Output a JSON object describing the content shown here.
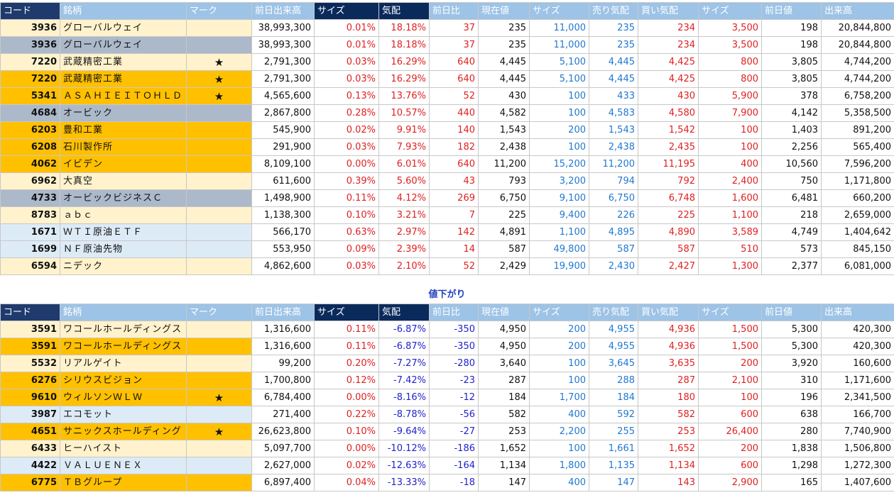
{
  "headers": [
    "コード",
    "銘柄",
    "マーク",
    "前日出来高",
    "サイズ",
    "気配",
    "前日比",
    "現在値",
    "サイズ",
    "売り気配",
    "買い気配",
    "サイズ",
    "前日値",
    "出来高"
  ],
  "section_label": "値下がり",
  "colors": {
    "cream": "#fff2cc",
    "orange": "#ffc000",
    "gray": "#acb9ca",
    "lightblue": "#ddebf7",
    "red": "#e02020",
    "blue": "#1f78d1"
  },
  "top_rows": [
    {
      "color": "cream",
      "code": "3936",
      "name": "グローバルウェイ",
      "mark": "",
      "prev_vol": "38,993,300",
      "size1": "0.01%",
      "quote": "18.18%",
      "change": "37",
      "price": "235",
      "size2": "11,000",
      "ask": "235",
      "bid": "234",
      "size3": "3,500",
      "prev": "198",
      "vol": "20,844,800"
    },
    {
      "color": "gray",
      "code": "3936",
      "name": "グローバルウェイ",
      "mark": "",
      "prev_vol": "38,993,300",
      "size1": "0.01%",
      "quote": "18.18%",
      "change": "37",
      "price": "235",
      "size2": "11,000",
      "ask": "235",
      "bid": "234",
      "size3": "3,500",
      "prev": "198",
      "vol": "20,844,800"
    },
    {
      "color": "cream",
      "code": "7220",
      "name": "武蔵精密工業",
      "mark": "★",
      "prev_vol": "2,791,300",
      "size1": "0.03%",
      "quote": "16.29%",
      "change": "640",
      "price": "4,445",
      "size2": "5,100",
      "ask": "4,445",
      "bid": "4,425",
      "size3": "800",
      "prev": "3,805",
      "vol": "4,744,200"
    },
    {
      "color": "orange",
      "code": "7220",
      "name": "武蔵精密工業",
      "mark": "★",
      "prev_vol": "2,791,300",
      "size1": "0.03%",
      "quote": "16.29%",
      "change": "640",
      "price": "4,445",
      "size2": "5,100",
      "ask": "4,445",
      "bid": "4,425",
      "size3": "800",
      "prev": "3,805",
      "vol": "4,744,200"
    },
    {
      "color": "orange",
      "code": "5341",
      "name": "ＡＳＡＨＩＥＩＴＯＨＬＤ",
      "mark": "★",
      "prev_vol": "4,565,600",
      "size1": "0.13%",
      "quote": "13.76%",
      "change": "52",
      "price": "430",
      "size2": "100",
      "ask": "433",
      "bid": "430",
      "size3": "5,900",
      "prev": "378",
      "vol": "6,758,200"
    },
    {
      "color": "gray",
      "code": "4684",
      "name": "オービック",
      "mark": "",
      "prev_vol": "2,867,800",
      "size1": "0.28%",
      "quote": "10.57%",
      "change": "440",
      "price": "4,582",
      "size2": "100",
      "ask": "4,583",
      "bid": "4,580",
      "size3": "7,900",
      "prev": "4,142",
      "vol": "5,358,500"
    },
    {
      "color": "orange",
      "code": "6203",
      "name": "豊和工業",
      "mark": "",
      "prev_vol": "545,900",
      "size1": "0.02%",
      "quote": "9.91%",
      "change": "140",
      "price": "1,543",
      "size2": "200",
      "ask": "1,543",
      "bid": "1,542",
      "size3": "100",
      "prev": "1,403",
      "vol": "891,200"
    },
    {
      "color": "orange",
      "code": "6208",
      "name": "石川製作所",
      "mark": "",
      "prev_vol": "291,900",
      "size1": "0.03%",
      "quote": "7.93%",
      "change": "182",
      "price": "2,438",
      "size2": "100",
      "ask": "2,438",
      "bid": "2,435",
      "size3": "100",
      "prev": "2,256",
      "vol": "565,400"
    },
    {
      "color": "orange",
      "code": "4062",
      "name": "イビデン",
      "mark": "",
      "prev_vol": "8,109,100",
      "size1": "0.00%",
      "quote": "6.01%",
      "change": "640",
      "price": "11,200",
      "size2": "15,200",
      "ask": "11,200",
      "bid": "11,195",
      "size3": "400",
      "prev": "10,560",
      "vol": "7,596,200"
    },
    {
      "color": "cream",
      "code": "6962",
      "name": "大真空",
      "mark": "",
      "prev_vol": "611,600",
      "size1": "0.39%",
      "quote": "5.60%",
      "change": "43",
      "price": "793",
      "size2": "3,200",
      "ask": "794",
      "bid": "792",
      "size3": "2,400",
      "prev": "750",
      "vol": "1,171,800"
    },
    {
      "color": "gray",
      "code": "4733",
      "name": "オービックビジネスＣ",
      "mark": "",
      "prev_vol": "1,498,900",
      "size1": "0.11%",
      "quote": "4.12%",
      "change": "269",
      "price": "6,750",
      "size2": "9,100",
      "ask": "6,750",
      "bid": "6,748",
      "size3": "1,600",
      "prev": "6,481",
      "vol": "660,200"
    },
    {
      "color": "cream",
      "code": "8783",
      "name": "ａｂｃ",
      "mark": "",
      "prev_vol": "1,138,300",
      "size1": "0.10%",
      "quote": "3.21%",
      "change": "7",
      "price": "225",
      "size2": "9,400",
      "ask": "226",
      "bid": "225",
      "size3": "1,100",
      "prev": "218",
      "vol": "2,659,000"
    },
    {
      "color": "lightblue",
      "code": "1671",
      "name": "ＷＴＩ原油ＥＴＦ",
      "mark": "",
      "prev_vol": "566,170",
      "size1": "0.63%",
      "quote": "2.97%",
      "change": "142",
      "price": "4,891",
      "size2": "1,100",
      "ask": "4,895",
      "bid": "4,890",
      "size3": "3,589",
      "prev": "4,749",
      "vol": "1,404,642"
    },
    {
      "color": "lightblue",
      "code": "1699",
      "name": "ＮＦ原油先物",
      "mark": "",
      "prev_vol": "553,950",
      "size1": "0.09%",
      "quote": "2.39%",
      "change": "14",
      "price": "587",
      "size2": "49,800",
      "ask": "587",
      "bid": "587",
      "size3": "510",
      "prev": "573",
      "vol": "845,150"
    },
    {
      "color": "cream",
      "code": "6594",
      "name": "ニデック",
      "mark": "",
      "prev_vol": "4,862,600",
      "size1": "0.03%",
      "quote": "2.10%",
      "change": "52",
      "price": "2,429",
      "size2": "19,900",
      "ask": "2,430",
      "bid": "2,427",
      "size3": "1,300",
      "prev": "2,377",
      "vol": "6,081,000"
    }
  ],
  "bottom_rows": [
    {
      "color": "cream",
      "code": "3591",
      "name": "ワコールホールディングス",
      "mark": "",
      "prev_vol": "1,316,600",
      "size1": "0.11%",
      "quote": "-6.87%",
      "change": "-350",
      "price": "4,950",
      "size2": "200",
      "ask": "4,955",
      "bid": "4,936",
      "size3": "1,500",
      "prev": "5,300",
      "vol": "420,300"
    },
    {
      "color": "orange",
      "code": "3591",
      "name": "ワコールホールディングス",
      "mark": "",
      "prev_vol": "1,316,600",
      "size1": "0.11%",
      "quote": "-6.87%",
      "change": "-350",
      "price": "4,950",
      "size2": "200",
      "ask": "4,955",
      "bid": "4,936",
      "size3": "1,500",
      "prev": "5,300",
      "vol": "420,300"
    },
    {
      "color": "cream",
      "code": "5532",
      "name": "リアルゲイト",
      "mark": "",
      "prev_vol": "99,200",
      "size1": "0.20%",
      "quote": "-7.27%",
      "change": "-280",
      "price": "3,640",
      "size2": "100",
      "ask": "3,645",
      "bid": "3,635",
      "size3": "200",
      "prev": "3,920",
      "vol": "160,600"
    },
    {
      "color": "orange",
      "code": "6276",
      "name": "シリウスビジョン",
      "mark": "",
      "prev_vol": "1,700,800",
      "size1": "0.12%",
      "quote": "-7.42%",
      "change": "-23",
      "price": "287",
      "size2": "100",
      "ask": "288",
      "bid": "287",
      "size3": "2,100",
      "prev": "310",
      "vol": "1,171,600"
    },
    {
      "color": "orange",
      "code": "9610",
      "name": "ウィルソンＷＬＷ",
      "mark": "★",
      "prev_vol": "6,784,400",
      "size1": "0.00%",
      "quote": "-8.16%",
      "change": "-12",
      "price": "184",
      "size2": "1,700",
      "ask": "184",
      "bid": "180",
      "size3": "100",
      "prev": "196",
      "vol": "2,341,500"
    },
    {
      "color": "lightblue",
      "code": "3987",
      "name": "エコモット",
      "mark": "",
      "prev_vol": "271,400",
      "size1": "0.22%",
      "quote": "-8.78%",
      "change": "-56",
      "price": "582",
      "size2": "400",
      "ask": "592",
      "bid": "582",
      "size3": "600",
      "prev": "638",
      "vol": "166,700"
    },
    {
      "color": "orange",
      "code": "4651",
      "name": "サニックスホールディング",
      "mark": "★",
      "prev_vol": "26,623,800",
      "size1": "0.10%",
      "quote": "-9.64%",
      "change": "-27",
      "price": "253",
      "size2": "2,200",
      "ask": "255",
      "bid": "253",
      "size3": "26,400",
      "prev": "280",
      "vol": "7,740,900"
    },
    {
      "color": "cream",
      "code": "6433",
      "name": "ヒーハイスト",
      "mark": "",
      "prev_vol": "5,097,700",
      "size1": "0.00%",
      "quote": "-10.12%",
      "change": "-186",
      "price": "1,652",
      "size2": "100",
      "ask": "1,661",
      "bid": "1,652",
      "size3": "200",
      "prev": "1,838",
      "vol": "1,506,800"
    },
    {
      "color": "lightblue",
      "code": "4422",
      "name": "ＶＡＬＵＥＮＥＸ",
      "mark": "",
      "prev_vol": "2,627,000",
      "size1": "0.02%",
      "quote": "-12.63%",
      "change": "-164",
      "price": "1,134",
      "size2": "1,800",
      "ask": "1,135",
      "bid": "1,134",
      "size3": "600",
      "prev": "1,298",
      "vol": "1,272,300"
    },
    {
      "color": "orange",
      "code": "6775",
      "name": "ＴＢグループ",
      "mark": "",
      "prev_vol": "6,897,400",
      "size1": "0.04%",
      "quote": "-13.33%",
      "change": "-18",
      "price": "147",
      "size2": "400",
      "ask": "147",
      "bid": "143",
      "size3": "2,900",
      "prev": "165",
      "vol": "1,407,600"
    }
  ]
}
